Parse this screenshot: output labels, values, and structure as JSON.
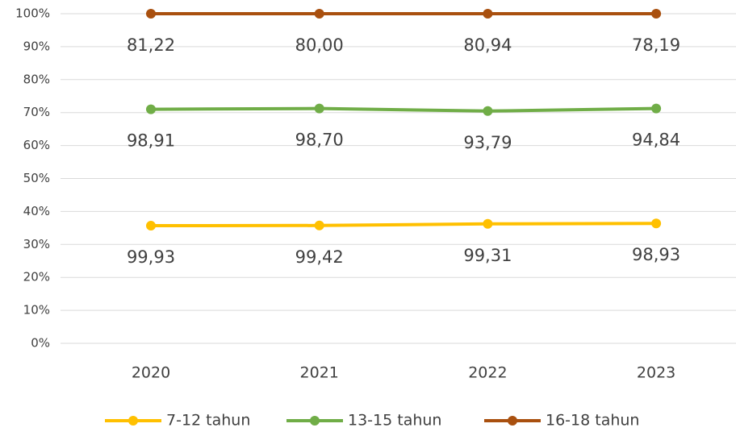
{
  "chart_data": {
    "type": "line",
    "stacked": "percent",
    "categories": [
      "2020",
      "2021",
      "2022",
      "2023"
    ],
    "series": [
      {
        "name": "7-12 tahun",
        "color": "#ffc000",
        "values": [
          99.93,
          99.42,
          99.31,
          98.93
        ],
        "value_labels": [
          "99,93",
          "99,42",
          "99,31",
          "98,93"
        ]
      },
      {
        "name": "13-15 tahun",
        "color": "#70ad47",
        "values": [
          98.91,
          98.7,
          93.79,
          94.84
        ],
        "value_labels": [
          "98,91",
          "98,70",
          "93,79",
          "94,84"
        ]
      },
      {
        "name": "16-18 tahun",
        "color": "#a9500f",
        "values": [
          81.22,
          80.0,
          80.94,
          78.19
        ],
        "value_labels": [
          "81,22",
          "80,00",
          "80,94",
          "78,19"
        ]
      }
    ],
    "ylim": [
      0,
      100
    ],
    "yticks": [
      {
        "value": 0,
        "label": "0%"
      },
      {
        "value": 10,
        "label": "10%"
      },
      {
        "value": 20,
        "label": "20%"
      },
      {
        "value": 30,
        "label": "30%"
      },
      {
        "value": 40,
        "label": "40%"
      },
      {
        "value": 50,
        "label": "50%"
      },
      {
        "value": 60,
        "label": "60%"
      },
      {
        "value": 70,
        "label": "70%"
      },
      {
        "value": 80,
        "label": "80%"
      },
      {
        "value": 90,
        "label": "90%"
      },
      {
        "value": 100,
        "label": "100%"
      }
    ],
    "grid": true,
    "legend": "bottom"
  }
}
